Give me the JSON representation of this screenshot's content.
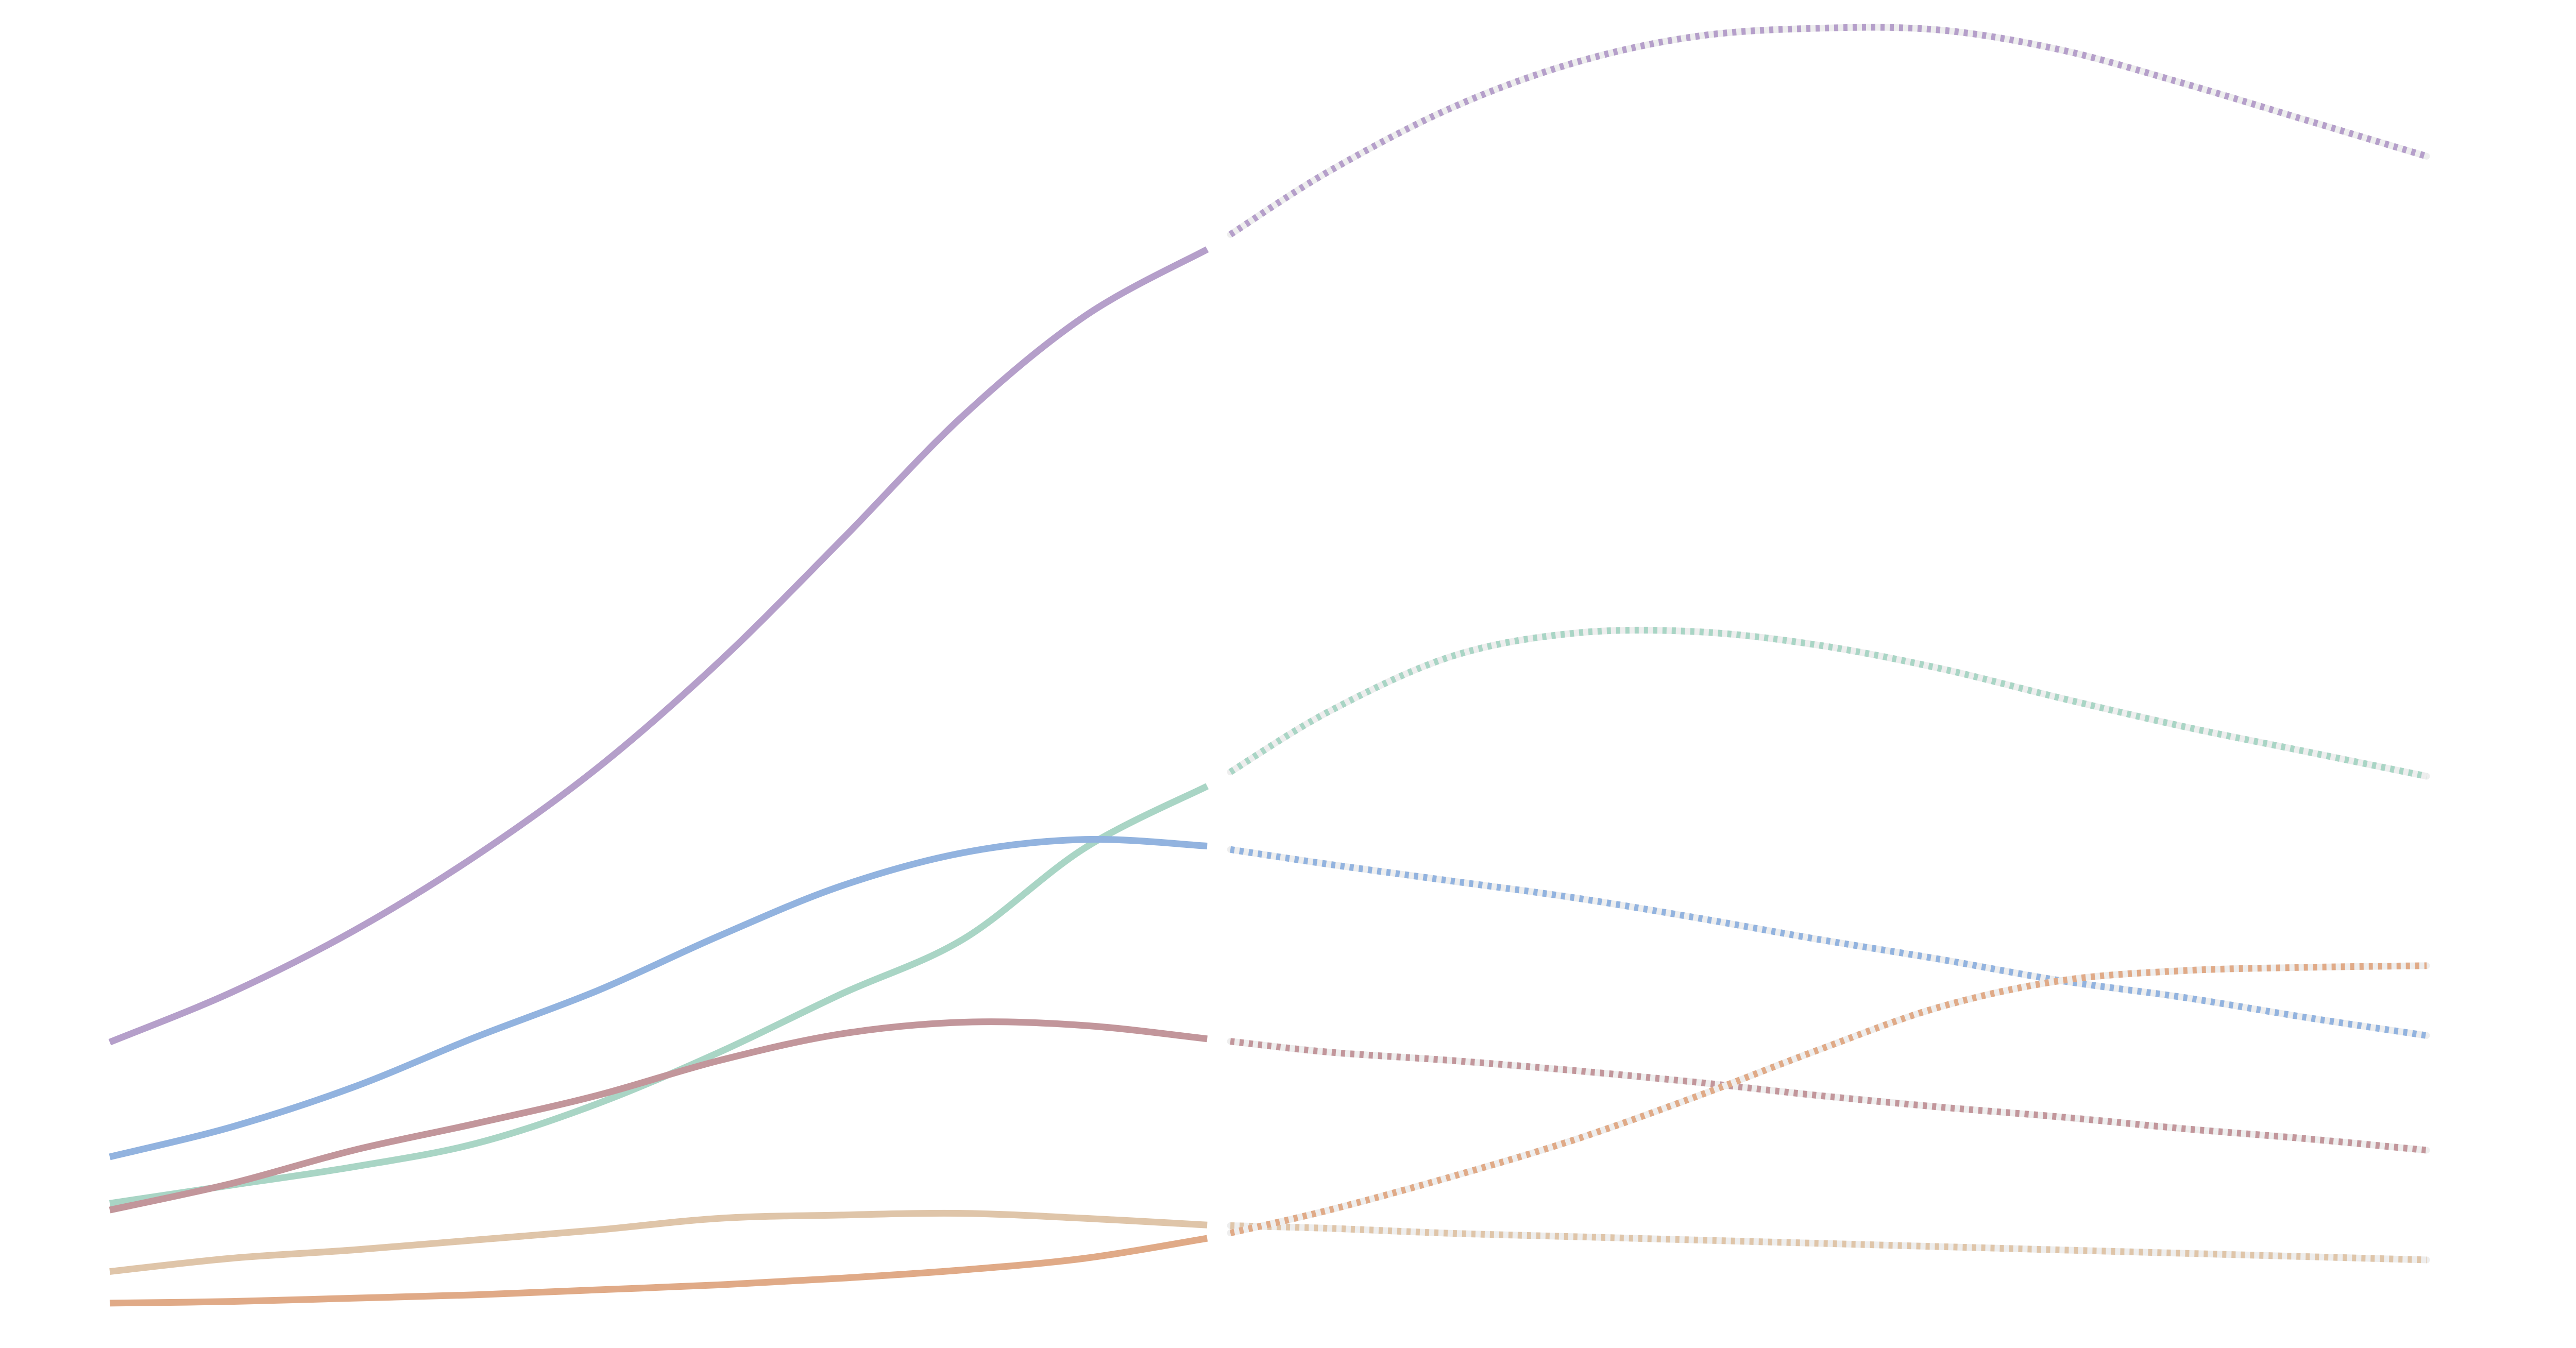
{
  "chart_data": {
    "type": "line",
    "title": "",
    "xlabel": "",
    "ylabel": "",
    "grid": false,
    "legend": "none",
    "axes_visible": false,
    "x": [
      0,
      1,
      2,
      3,
      4,
      5,
      6,
      7,
      8,
      9,
      10,
      11,
      12,
      13,
      14,
      15,
      16,
      17,
      18,
      19
    ],
    "xlim": [
      0,
      19
    ],
    "ylim": [
      0,
      811
    ],
    "actual_range": [
      0,
      9
    ],
    "forecast_range": [
      9,
      19
    ],
    "forecast_style": "dashed",
    "series": [
      {
        "color": "#b59fca",
        "values": [
          184,
          214,
          251,
          296,
          349,
          413,
          486,
          561,
          621,
          661,
          708,
          746,
          773,
          789,
          794,
          793,
          781,
          761,
          739,
          717
        ]
      },
      {
        "color": "#a9d5c5",
        "values": [
          87,
          98,
          109,
          123,
          147,
          178,
          213,
          246,
          301,
          338,
          383,
          416,
          430,
          431,
          423,
          409,
          391,
          374,
          359,
          344
        ]
      },
      {
        "color": "#92b3df",
        "values": [
          115,
          133,
          157,
          187,
          215,
          248,
          278,
          298,
          306,
          302,
          291,
          281,
          271,
          259,
          246,
          234,
          221,
          211,
          199,
          188
        ]
      },
      {
        "color": "#c2969b",
        "values": [
          83,
          99,
          119,
          135,
          152,
          173,
          189,
          196,
          194,
          186,
          178,
          173,
          167,
          160,
          152,
          145,
          139,
          132,
          126,
          119
        ]
      },
      {
        "color": "#dfc5a9",
        "values": [
          46,
          54,
          59,
          65,
          71,
          78,
          80,
          81,
          78,
          74,
          72,
          69,
          67,
          65,
          63,
          61,
          59,
          57,
          55,
          53
        ]
      },
      {
        "color": "#e0aa87",
        "values": [
          27,
          28,
          30,
          32,
          35,
          38,
          42,
          47,
          54,
          66,
          83,
          103,
          125,
          151,
          179,
          205,
          221,
          227,
          229,
          230
        ]
      }
    ]
  }
}
